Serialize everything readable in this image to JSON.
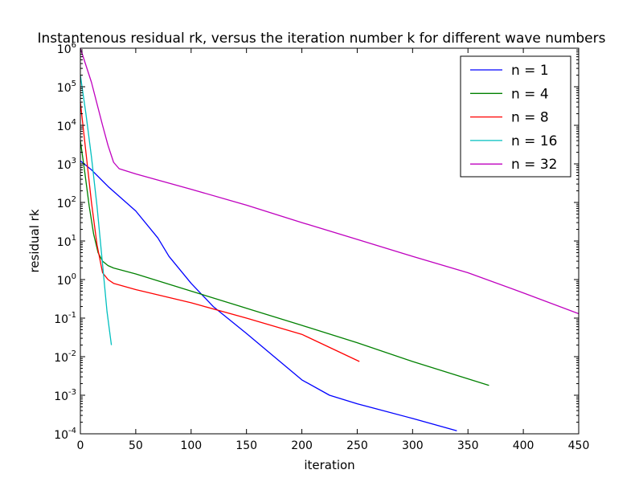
{
  "chart_data": {
    "type": "line",
    "title": "Instantenous residual rk, versus the iteration number k for different wave numbers",
    "xlabel": "iteration",
    "ylabel": "residual rk",
    "xlim": [
      0,
      450
    ],
    "ylim": [
      0.0001,
      1000000
    ],
    "yscale": "log",
    "grid": false,
    "legend_position": "top-right",
    "x_ticks": [
      0,
      50,
      100,
      150,
      200,
      250,
      300,
      350,
      400,
      450
    ],
    "x_tick_labels": [
      "0",
      "50",
      "100",
      "150",
      "200",
      "250",
      "300",
      "350",
      "400",
      "450"
    ],
    "y_ticks": [
      0.0001,
      0.001,
      0.01,
      0.1,
      1,
      10,
      100,
      1000,
      10000,
      100000,
      1000000
    ],
    "y_tick_labels": [
      {
        "base": "10",
        "exp": "-4"
      },
      {
        "base": "10",
        "exp": "-3"
      },
      {
        "base": "10",
        "exp": "-2"
      },
      {
        "base": "10",
        "exp": "-1"
      },
      {
        "base": "10",
        "exp": "0"
      },
      {
        "base": "10",
        "exp": "1"
      },
      {
        "base": "10",
        "exp": "2"
      },
      {
        "base": "10",
        "exp": "3"
      },
      {
        "base": "10",
        "exp": "4"
      },
      {
        "base": "10",
        "exp": "5"
      },
      {
        "base": "10",
        "exp": "6"
      }
    ],
    "series": [
      {
        "name": "n = 1",
        "color": "#0000ff",
        "points": [
          [
            0,
            1200
          ],
          [
            10,
            700
          ],
          [
            25,
            260
          ],
          [
            50,
            60
          ],
          [
            70,
            12
          ],
          [
            80,
            4
          ],
          [
            100,
            0.8
          ],
          [
            120,
            0.2
          ],
          [
            150,
            0.04
          ],
          [
            175,
            0.01
          ],
          [
            200,
            0.0025
          ],
          [
            225,
            0.001
          ],
          [
            250,
            0.0006
          ],
          [
            300,
            0.00025
          ],
          [
            340,
            0.00012
          ]
        ]
      },
      {
        "name": "n = 4",
        "color": "#008000",
        "points": [
          [
            0,
            4000
          ],
          [
            4,
            600
          ],
          [
            8,
            80
          ],
          [
            12,
            15
          ],
          [
            16,
            5
          ],
          [
            20,
            3
          ],
          [
            25,
            2.3
          ],
          [
            30,
            2
          ],
          [
            50,
            1.4
          ],
          [
            100,
            0.5
          ],
          [
            150,
            0.18
          ],
          [
            200,
            0.065
          ],
          [
            250,
            0.023
          ],
          [
            300,
            0.0075
          ],
          [
            369,
            0.0018
          ]
        ]
      },
      {
        "name": "n = 8",
        "color": "#ff0000",
        "points": [
          [
            0,
            40000
          ],
          [
            5,
            2000
          ],
          [
            10,
            100
          ],
          [
            15,
            8
          ],
          [
            20,
            1.5
          ],
          [
            25,
            1
          ],
          [
            30,
            0.8
          ],
          [
            50,
            0.55
          ],
          [
            100,
            0.25
          ],
          [
            150,
            0.1
          ],
          [
            200,
            0.038
          ],
          [
            252,
            0.0075
          ]
        ]
      },
      {
        "name": "n = 16",
        "color": "#00bfbf",
        "points": [
          [
            0,
            200000
          ],
          [
            5,
            20000
          ],
          [
            10,
            1500
          ],
          [
            15,
            80
          ],
          [
            20,
            2.5
          ],
          [
            24,
            0.15
          ],
          [
            28,
            0.02
          ]
        ]
      },
      {
        "name": "n = 32",
        "color": "#bf00bf",
        "points": [
          [
            0,
            1000000
          ],
          [
            10,
            130000
          ],
          [
            20,
            10000
          ],
          [
            25,
            3000
          ],
          [
            30,
            1100
          ],
          [
            35,
            750
          ],
          [
            50,
            550
          ],
          [
            100,
            220
          ],
          [
            150,
            85
          ],
          [
            200,
            30
          ],
          [
            250,
            11
          ],
          [
            300,
            4
          ],
          [
            350,
            1.5
          ],
          [
            400,
            0.45
          ],
          [
            450,
            0.13
          ]
        ]
      }
    ]
  }
}
